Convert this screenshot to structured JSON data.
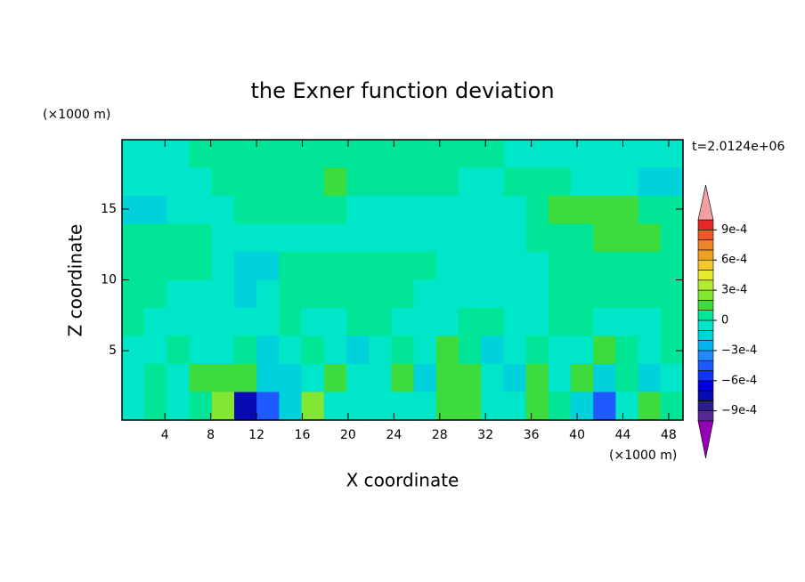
{
  "chart_data": {
    "type": "contour",
    "title": "the Exner function deviation",
    "xlabel": "X coordinate",
    "ylabel": "Z coordinate",
    "xunit": "(×1000 m)",
    "yunit": "(×1000 m)",
    "time_label": "t=2.0124e+06",
    "xlim": [
      0.25,
      49.25
    ],
    "ylim": [
      0.1,
      19.9
    ],
    "xticks": [
      4,
      8,
      12,
      16,
      20,
      24,
      28,
      32,
      36,
      40,
      44,
      48
    ],
    "yticks": [
      5,
      10,
      15
    ],
    "z": [
      [
        -5e-05,
        -5e-05,
        -5e-05,
        5e-05,
        5e-05,
        5e-05,
        5e-05,
        5e-05,
        5e-05,
        5e-05,
        5e-05,
        5e-05,
        5e-05,
        5e-05,
        5e-05,
        5e-05,
        5e-05,
        -5e-05,
        -5e-05,
        -5e-05,
        -5e-05,
        -5e-05,
        -5e-05,
        -5e-05,
        -5e-05
      ],
      [
        -5e-05,
        -5e-05,
        -5e-05,
        -5e-05,
        5e-05,
        5e-05,
        5e-05,
        5e-05,
        5e-05,
        0.00015,
        5e-05,
        5e-05,
        5e-05,
        5e-05,
        5e-05,
        -5e-05,
        -5e-05,
        5e-05,
        5e-05,
        5e-05,
        -5e-05,
        -5e-05,
        -5e-05,
        -0.00015,
        -0.00015
      ],
      [
        -0.00015,
        -0.00015,
        -5e-05,
        -5e-05,
        -5e-05,
        5e-05,
        5e-05,
        5e-05,
        5e-05,
        5e-05,
        -5e-05,
        -5e-05,
        -5e-05,
        -5e-05,
        -5e-05,
        -5e-05,
        -5e-05,
        -5e-05,
        5e-05,
        0.00015,
        0.00015,
        0.00015,
        0.00015,
        5e-05,
        5e-05
      ],
      [
        5e-05,
        5e-05,
        5e-05,
        5e-05,
        -5e-05,
        -5e-05,
        -5e-05,
        -5e-05,
        -5e-05,
        -5e-05,
        -5e-05,
        -5e-05,
        -5e-05,
        -5e-05,
        -5e-05,
        -5e-05,
        -5e-05,
        -5e-05,
        5e-05,
        5e-05,
        5e-05,
        0.00015,
        0.00015,
        0.00015,
        5e-05
      ],
      [
        5e-05,
        5e-05,
        5e-05,
        5e-05,
        -5e-05,
        -0.00015,
        -0.00015,
        5e-05,
        5e-05,
        5e-05,
        5e-05,
        5e-05,
        5e-05,
        5e-05,
        -5e-05,
        -5e-05,
        -5e-05,
        -5e-05,
        -5e-05,
        5e-05,
        5e-05,
        5e-05,
        5e-05,
        5e-05,
        5e-05
      ],
      [
        5e-05,
        5e-05,
        -5e-05,
        -5e-05,
        -5e-05,
        -0.00015,
        -5e-05,
        5e-05,
        5e-05,
        5e-05,
        5e-05,
        5e-05,
        5e-05,
        -5e-05,
        -5e-05,
        -5e-05,
        -5e-05,
        -5e-05,
        -5e-05,
        5e-05,
        5e-05,
        5e-05,
        5e-05,
        5e-05,
        5e-05
      ],
      [
        5e-05,
        -5e-05,
        -5e-05,
        -5e-05,
        -5e-05,
        -5e-05,
        -5e-05,
        5e-05,
        -5e-05,
        -5e-05,
        5e-05,
        5e-05,
        -5e-05,
        -5e-05,
        -5e-05,
        5e-05,
        5e-05,
        -5e-05,
        -5e-05,
        5e-05,
        5e-05,
        -5e-05,
        -5e-05,
        -5e-05,
        5e-05
      ],
      [
        -5e-05,
        -5e-05,
        5e-05,
        -5e-05,
        -5e-05,
        5e-05,
        -0.00015,
        -5e-05,
        5e-05,
        -5e-05,
        -0.00015,
        -5e-05,
        5e-05,
        -5e-05,
        0.00015,
        5e-05,
        -0.00015,
        -5e-05,
        5e-05,
        -5e-05,
        -5e-05,
        0.00015,
        5e-05,
        -5e-05,
        5e-05
      ],
      [
        -5e-05,
        5e-05,
        -5e-05,
        0.00015,
        0.00015,
        0.00015,
        -0.00015,
        -0.00015,
        -5e-05,
        0.00015,
        -5e-05,
        -5e-05,
        0.00015,
        -0.00015,
        0.00015,
        0.00015,
        -5e-05,
        -0.00015,
        0.00015,
        -5e-05,
        0.00015,
        -0.00015,
        5e-05,
        -0.00015,
        -5e-05
      ],
      [
        -5e-05,
        5e-05,
        -5e-05,
        5e-05,
        0.00025,
        -0.0008,
        -0.0005,
        -0.00015,
        0.00025,
        -5e-05,
        -5e-05,
        -5e-05,
        -5e-05,
        -5e-05,
        0.00015,
        0.00015,
        -5e-05,
        -5e-05,
        0.00015,
        5e-05,
        -0.00015,
        -0.0005,
        -5e-05,
        0.00015,
        5e-05
      ]
    ],
    "levels": [
      -0.001,
      -0.0009,
      -0.0008,
      -0.0007,
      -0.0006,
      -0.0005,
      -0.0004,
      -0.0003,
      -0.0002,
      -0.0001,
      0,
      0.0001,
      0.0002,
      0.0003,
      0.0004,
      0.0005,
      0.0006,
      0.0007,
      0.0008,
      0.0009,
      0.001
    ],
    "colors": [
      "#9600b4",
      "#5a2896",
      "#2a1e8c",
      "#0a0ab4",
      "#0000dc",
      "#1432ff",
      "#1e5aff",
      "#1e8cff",
      "#00b4f0",
      "#00d2dc",
      "#00e6c8",
      "#00e696",
      "#3cdc3c",
      "#82e632",
      "#b4eb32",
      "#e6eb32",
      "#f0c828",
      "#f0a01e",
      "#f08228",
      "#f05a28",
      "#e62828",
      "#f0a0a0"
    ],
    "colorbar_ticks": [
      {
        "value": 0.0009,
        "label": "9e-4"
      },
      {
        "value": 0.0006,
        "label": "6e-4"
      },
      {
        "value": 0.0003,
        "label": "3e-4"
      },
      0,
      {
        "value": -0.0003,
        "label": "−3e-4"
      },
      {
        "value": -0.0006,
        "label": "−6e-4"
      },
      {
        "value": -0.0009,
        "label": "−9e-4"
      }
    ]
  }
}
